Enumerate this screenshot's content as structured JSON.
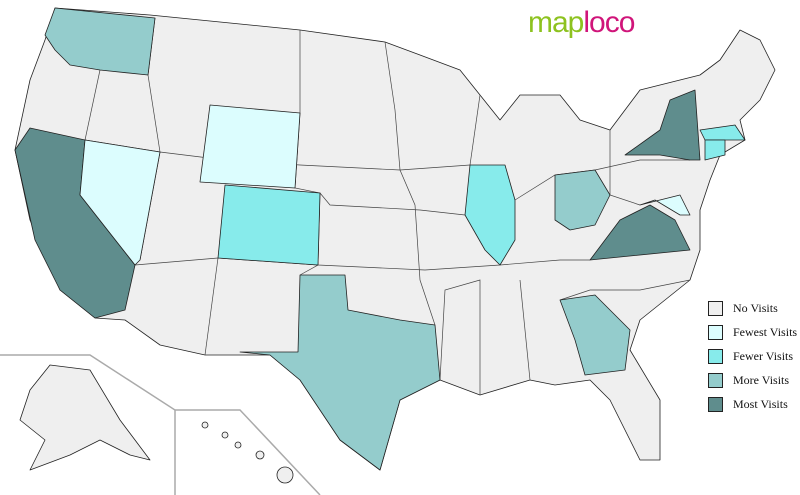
{
  "logo": {
    "part1": "map",
    "part2": "loco"
  },
  "colors": {
    "none": "#efefef",
    "fewest": "#dcfdfe",
    "fewer": "#87ebeb",
    "more": "#94cccc",
    "most": "#5f8d8d"
  },
  "legend": [
    {
      "label": "No Visits",
      "level": "none"
    },
    {
      "label": "Fewest Visits",
      "level": "fewest"
    },
    {
      "label": "Fewer Visits",
      "level": "fewer"
    },
    {
      "label": "More Visits",
      "level": "more"
    },
    {
      "label": "Most Visits",
      "level": "most"
    }
  ],
  "states": {
    "washington": "more",
    "california": "most",
    "nevada": "fewest",
    "wyoming": "fewest",
    "colorado": "fewer",
    "texas": "more",
    "illinois": "fewer",
    "ohio": "more",
    "georgia": "more",
    "virginia": "most",
    "new-york": "most",
    "massachusetts": "fewer",
    "connecticut": "fewer",
    "maryland": "fewest"
  }
}
